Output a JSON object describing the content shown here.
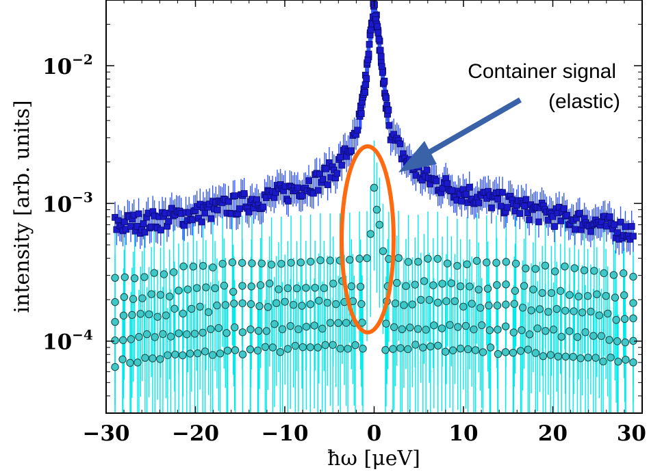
{
  "chart_data": {
    "type": "scatter",
    "xlabel": "ħω [μeV]",
    "ylabel": "intensity [arb. units]",
    "xlim": [
      -30,
      30
    ],
    "ylim": [
      3e-05,
      0.03
    ],
    "yscale": "log",
    "grid": false,
    "x_ticks": [
      {
        "value": -30,
        "label": "−30"
      },
      {
        "value": -20,
        "label": "−20"
      },
      {
        "value": -10,
        "label": "−10"
      },
      {
        "value": 0,
        "label": "0"
      },
      {
        "value": 10,
        "label": "10"
      },
      {
        "value": 20,
        "label": "20"
      },
      {
        "value": 30,
        "label": "30"
      }
    ],
    "y_ticks": [
      {
        "value": 0.01,
        "base": "10",
        "exp": "−2"
      },
      {
        "value": 0.001,
        "base": "10",
        "exp": "−3"
      },
      {
        "value": 0.0001,
        "base": "10",
        "exp": "−4"
      }
    ],
    "series": [
      {
        "marker": "square",
        "color": "#1a1acc",
        "error_color": "#3355ff",
        "description_points": [
          {
            "x": -29,
            "y": 0.0007
          },
          {
            "x": -25,
            "y": 0.00075
          },
          {
            "x": -20,
            "y": 0.00085
          },
          {
            "x": -15,
            "y": 0.001
          },
          {
            "x": -10,
            "y": 0.0012
          },
          {
            "x": -6,
            "y": 0.0015
          },
          {
            "x": -4,
            "y": 0.0019
          },
          {
            "x": -2,
            "y": 0.003
          },
          {
            "x": -1,
            "y": 0.007
          },
          {
            "x": -0.5,
            "y": 0.015
          },
          {
            "x": 0,
            "y": 0.028
          },
          {
            "x": 0.5,
            "y": 0.016
          },
          {
            "x": 1,
            "y": 0.008
          },
          {
            "x": 2,
            "y": 0.003
          },
          {
            "x": 4,
            "y": 0.0019
          },
          {
            "x": 6,
            "y": 0.0015
          },
          {
            "x": 10,
            "y": 0.0012
          },
          {
            "x": 15,
            "y": 0.001
          },
          {
            "x": 20,
            "y": 0.00082
          },
          {
            "x": 25,
            "y": 0.00072
          },
          {
            "x": 29,
            "y": 0.00062
          }
        ]
      },
      {
        "marker": "circle",
        "color": "#40c8c8",
        "error_color": "#00eaea",
        "bands": [
          {
            "x": [
              -29,
              29
            ],
            "y": 9e-05
          },
          {
            "x": [
              -29,
              29
            ],
            "y": 0.00013
          },
          {
            "x": [
              -29,
              29
            ],
            "y": 0.00019
          },
          {
            "x": [
              -29,
              29
            ],
            "y": 0.00026
          },
          {
            "x": [
              -29,
              29
            ],
            "y": 0.00038
          }
        ],
        "peak_points": [
          {
            "x": -0.8,
            "y": 0.0004
          },
          {
            "x": -0.4,
            "y": 0.0006
          },
          {
            "x": 0,
            "y": 0.0013
          },
          {
            "x": 0.3,
            "y": 0.0009
          },
          {
            "x": 0.6,
            "y": 0.0007
          },
          {
            "x": 1,
            "y": 0.00045
          }
        ]
      }
    ],
    "annotations": [
      {
        "text_lines": [
          "Container signal",
          "(elastic)"
        ],
        "arrow_color": "#3a62a8",
        "ellipse_color": "#ff6a10"
      }
    ]
  }
}
